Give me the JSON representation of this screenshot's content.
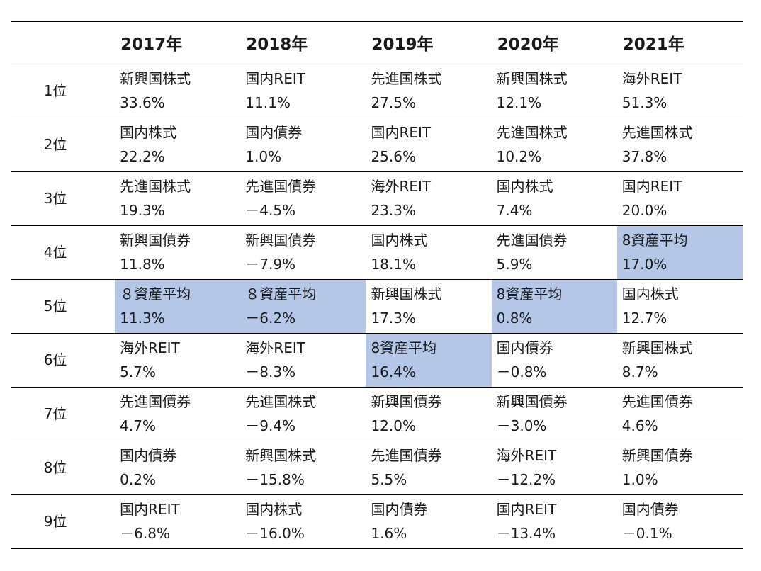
{
  "highlight_color": "#b4c7e7",
  "columns": [
    "2017年",
    "2018年",
    "2019年",
    "2020年",
    "2021年"
  ],
  "rows": [
    {
      "rank": "1位",
      "cells": [
        {
          "asset": "新興国株式",
          "ret": "33.6%",
          "highlight": false
        },
        {
          "asset": "国内REIT",
          "ret": "11.1%",
          "highlight": false
        },
        {
          "asset": "先進国株式",
          "ret": "27.5%",
          "highlight": false
        },
        {
          "asset": "新興国株式",
          "ret": "12.1%",
          "highlight": false
        },
        {
          "asset": "海外REIT",
          "ret": "51.3%",
          "highlight": false
        }
      ]
    },
    {
      "rank": "2位",
      "cells": [
        {
          "asset": "国内株式",
          "ret": "22.2%",
          "highlight": false
        },
        {
          "asset": "国内債券",
          "ret": "1.0%",
          "highlight": false
        },
        {
          "asset": "国内REIT",
          "ret": "25.6%",
          "highlight": false
        },
        {
          "asset": "先進国株式",
          "ret": "10.2%",
          "highlight": false
        },
        {
          "asset": "先進国株式",
          "ret": "37.8%",
          "highlight": false
        }
      ]
    },
    {
      "rank": "3位",
      "cells": [
        {
          "asset": "先進国株式",
          "ret": "19.3%",
          "highlight": false
        },
        {
          "asset": "先進国債券",
          "ret": "－4.5%",
          "highlight": false
        },
        {
          "asset": "海外REIT",
          "ret": "23.3%",
          "highlight": false
        },
        {
          "asset": "国内株式",
          "ret": "7.4%",
          "highlight": false
        },
        {
          "asset": "国内REIT",
          "ret": "20.0%",
          "highlight": false
        }
      ]
    },
    {
      "rank": "4位",
      "cells": [
        {
          "asset": "新興国債券",
          "ret": "11.8%",
          "highlight": false
        },
        {
          "asset": "新興国債券",
          "ret": "－7.9%",
          "highlight": false
        },
        {
          "asset": "国内株式",
          "ret": "18.1%",
          "highlight": false
        },
        {
          "asset": "先進国債券",
          "ret": "5.9%",
          "highlight": false
        },
        {
          "asset": "8資産平均",
          "ret": "17.0%",
          "highlight": true
        }
      ]
    },
    {
      "rank": "5位",
      "cells": [
        {
          "asset": " ８資産平均",
          "ret": "11.3%",
          "highlight": true
        },
        {
          "asset": " ８資産平均",
          "ret": "－6.2%",
          "highlight": true
        },
        {
          "asset": "新興国株式",
          "ret": "17.3%",
          "highlight": false
        },
        {
          "asset": "8資産平均",
          "ret": "0.8%",
          "highlight": true
        },
        {
          "asset": "国内株式",
          "ret": "12.7%",
          "highlight": false
        }
      ]
    },
    {
      "rank": "6位",
      "cells": [
        {
          "asset": "海外REIT",
          "ret": "5.7%",
          "highlight": false
        },
        {
          "asset": "海外REIT",
          "ret": "－8.3%",
          "highlight": false
        },
        {
          "asset": "8資産平均",
          "ret": "16.4%",
          "highlight": true
        },
        {
          "asset": "国内債券",
          "ret": "－0.8%",
          "highlight": false
        },
        {
          "asset": "新興国株式",
          "ret": "8.7%",
          "highlight": false
        }
      ]
    },
    {
      "rank": "7位",
      "cells": [
        {
          "asset": "先進国債券",
          "ret": "4.7%",
          "highlight": false
        },
        {
          "asset": "先進国株式",
          "ret": "－9.4%",
          "highlight": false
        },
        {
          "asset": "新興国債券",
          "ret": "12.0%",
          "highlight": false
        },
        {
          "asset": "新興国債券",
          "ret": "－3.0%",
          "highlight": false
        },
        {
          "asset": "先進国債券",
          "ret": "4.6%",
          "highlight": false
        }
      ]
    },
    {
      "rank": "8位",
      "cells": [
        {
          "asset": "国内債券",
          "ret": "0.2%",
          "highlight": false
        },
        {
          "asset": "新興国株式",
          "ret": "－15.8%",
          "highlight": false
        },
        {
          "asset": "先進国債券",
          "ret": "5.5%",
          "highlight": false
        },
        {
          "asset": "海外REIT",
          "ret": "－12.2%",
          "highlight": false
        },
        {
          "asset": "新興国債券",
          "ret": "1.0%",
          "highlight": false
        }
      ]
    },
    {
      "rank": "9位",
      "cells": [
        {
          "asset": "国内REIT",
          "ret": "－6.8%",
          "highlight": false
        },
        {
          "asset": "国内株式",
          "ret": "－16.0%",
          "highlight": false
        },
        {
          "asset": "国内債券",
          "ret": "1.6%",
          "highlight": false
        },
        {
          "asset": "国内REIT",
          "ret": "－13.4%",
          "highlight": false
        },
        {
          "asset": "国内債券",
          "ret": "－0.1%",
          "highlight": false
        }
      ]
    }
  ]
}
